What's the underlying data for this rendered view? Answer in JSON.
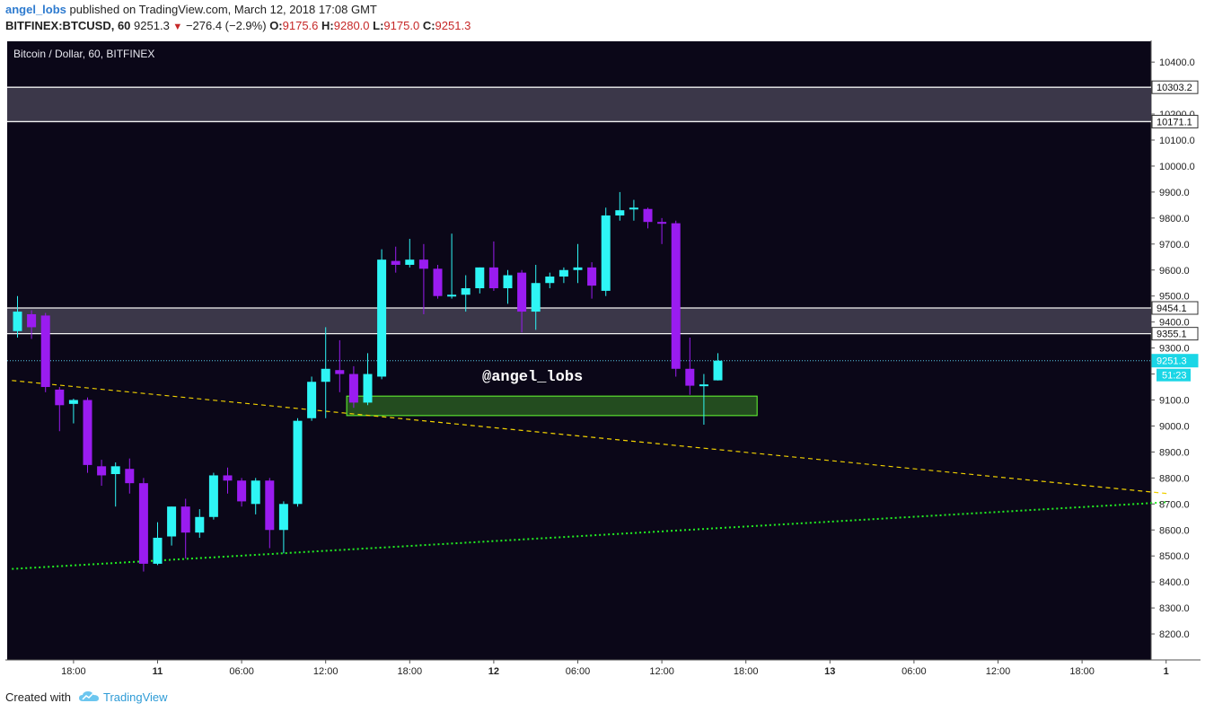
{
  "header": {
    "author": "angel_lobs",
    "published": "published on TradingView.com, March 12, 2018 17:08 GMT",
    "symbol": "BITFINEX:BTCUSD, 60",
    "last": "9251.3",
    "change": "−276.4 (−2.9%)",
    "o_label": "O:",
    "o_value": "9175.6",
    "h_label": "H:",
    "h_value": "9280.0",
    "l_label": "L:",
    "l_value": "9175.0",
    "c_label": "C:",
    "c_value": "9251.3"
  },
  "footer": {
    "created_with": "Created with",
    "brand": "TradingView"
  },
  "chart_data": {
    "type": "candlestick",
    "title": "Bitcoin / Dollar, 60, BITFINEX",
    "colors": {
      "background": "#0b0718",
      "up": "#2ef5f5",
      "down": "#9a1cf0",
      "zone": "#3e3a4c",
      "support": "#66ff33",
      "trend_dashed": "#f0d000",
      "trend_dotted": "#22ee22",
      "last_price_line": "#59c8e8"
    },
    "ylim": [
      8100,
      10480
    ],
    "yticks": [
      8200,
      8300,
      8400,
      8500,
      8600,
      8700,
      8800,
      8900,
      9000,
      9100,
      9200,
      9300,
      9400,
      9500,
      9600,
      9700,
      9800,
      9900,
      10000,
      10100,
      10200,
      10300,
      10400
    ],
    "xticks": [
      {
        "label": "18:00",
        "bar": 4
      },
      {
        "label": "11",
        "bar": 10
      },
      {
        "label": "06:00",
        "bar": 16
      },
      {
        "label": "12:00",
        "bar": 22
      },
      {
        "label": "18:00",
        "bar": 28
      },
      {
        "label": "12",
        "bar": 34
      },
      {
        "label": "06:00",
        "bar": 40
      },
      {
        "label": "12:00",
        "bar": 46
      },
      {
        "label": "18:00",
        "bar": 52
      },
      {
        "label": "13",
        "bar": 58
      },
      {
        "label": "06:00",
        "bar": 64
      },
      {
        "label": "12:00",
        "bar": 70
      },
      {
        "label": "18:00",
        "bar": 76
      },
      {
        "label": "1",
        "bar": 82
      }
    ],
    "candles": [
      {
        "o": 9365,
        "h": 9500,
        "l": 9340,
        "c": 9440
      },
      {
        "o": 9430,
        "h": 9445,
        "l": 9335,
        "c": 9380
      },
      {
        "o": 9425,
        "h": 9435,
        "l": 9130,
        "c": 9150
      },
      {
        "o": 9140,
        "h": 9150,
        "l": 8980,
        "c": 9080
      },
      {
        "o": 9085,
        "h": 9105,
        "l": 9010,
        "c": 9100
      },
      {
        "o": 9100,
        "h": 9110,
        "l": 8820,
        "c": 8850
      },
      {
        "o": 8845,
        "h": 8870,
        "l": 8770,
        "c": 8810
      },
      {
        "o": 8815,
        "h": 8860,
        "l": 8690,
        "c": 8845
      },
      {
        "o": 8835,
        "h": 8875,
        "l": 8740,
        "c": 8780
      },
      {
        "o": 8780,
        "h": 8800,
        "l": 8440,
        "c": 8470
      },
      {
        "o": 8470,
        "h": 8630,
        "l": 8465,
        "c": 8570
      },
      {
        "o": 8575,
        "h": 8690,
        "l": 8540,
        "c": 8690
      },
      {
        "o": 8690,
        "h": 8720,
        "l": 8490,
        "c": 8590
      },
      {
        "o": 8590,
        "h": 8680,
        "l": 8570,
        "c": 8650
      },
      {
        "o": 8650,
        "h": 8820,
        "l": 8640,
        "c": 8810
      },
      {
        "o": 8810,
        "h": 8840,
        "l": 8740,
        "c": 8790
      },
      {
        "o": 8790,
        "h": 8800,
        "l": 8690,
        "c": 8710
      },
      {
        "o": 8700,
        "h": 8800,
        "l": 8660,
        "c": 8790
      },
      {
        "o": 8790,
        "h": 8800,
        "l": 8530,
        "c": 8600
      },
      {
        "o": 8600,
        "h": 8710,
        "l": 8510,
        "c": 8700
      },
      {
        "o": 8700,
        "h": 9030,
        "l": 8690,
        "c": 9020
      },
      {
        "o": 9030,
        "h": 9190,
        "l": 9020,
        "c": 9170
      },
      {
        "o": 9170,
        "h": 9380,
        "l": 9030,
        "c": 9220
      },
      {
        "o": 9215,
        "h": 9330,
        "l": 9130,
        "c": 9200
      },
      {
        "o": 9200,
        "h": 9230,
        "l": 9070,
        "c": 9090
      },
      {
        "o": 9090,
        "h": 9280,
        "l": 9080,
        "c": 9200
      },
      {
        "o": 9190,
        "h": 9680,
        "l": 9180,
        "c": 9640
      },
      {
        "o": 9635,
        "h": 9690,
        "l": 9590,
        "c": 9620
      },
      {
        "o": 9620,
        "h": 9720,
        "l": 9610,
        "c": 9640
      },
      {
        "o": 9640,
        "h": 9700,
        "l": 9430,
        "c": 9605
      },
      {
        "o": 9605,
        "h": 9620,
        "l": 9490,
        "c": 9500
      },
      {
        "o": 9500,
        "h": 9740,
        "l": 9490,
        "c": 9505
      },
      {
        "o": 9505,
        "h": 9580,
        "l": 9440,
        "c": 9530
      },
      {
        "o": 9530,
        "h": 9610,
        "l": 9510,
        "c": 9610
      },
      {
        "o": 9610,
        "h": 9710,
        "l": 9520,
        "c": 9530
      },
      {
        "o": 9530,
        "h": 9600,
        "l": 9470,
        "c": 9580
      },
      {
        "o": 9590,
        "h": 9600,
        "l": 9360,
        "c": 9440
      },
      {
        "o": 9440,
        "h": 9620,
        "l": 9370,
        "c": 9550
      },
      {
        "o": 9550,
        "h": 9590,
        "l": 9530,
        "c": 9575
      },
      {
        "o": 9575,
        "h": 9610,
        "l": 9550,
        "c": 9600
      },
      {
        "o": 9600,
        "h": 9700,
        "l": 9550,
        "c": 9610
      },
      {
        "o": 9610,
        "h": 9630,
        "l": 9490,
        "c": 9540
      },
      {
        "o": 9520,
        "h": 9840,
        "l": 9500,
        "c": 9810
      },
      {
        "o": 9810,
        "h": 9900,
        "l": 9790,
        "c": 9830
      },
      {
        "o": 9840,
        "h": 9870,
        "l": 9790,
        "c": 9840
      },
      {
        "o": 9835,
        "h": 9840,
        "l": 9760,
        "c": 9785
      },
      {
        "o": 9785,
        "h": 9800,
        "l": 9700,
        "c": 9780
      },
      {
        "o": 9780,
        "h": 9790,
        "l": 9190,
        "c": 9220
      },
      {
        "o": 9220,
        "h": 9340,
        "l": 9120,
        "c": 9155
      },
      {
        "o": 9155,
        "h": 9200,
        "l": 9005,
        "c": 9160
      },
      {
        "o": 9175.6,
        "h": 9280,
        "l": 9175,
        "c": 9251.3
      }
    ],
    "zones": [
      {
        "from": 10171.1,
        "to": 10303.2
      },
      {
        "from": 9355.1,
        "to": 9454.1
      }
    ],
    "support_box": {
      "from": 9040,
      "to": 9115,
      "start_bar": 23.5,
      "end_bar": 52.8
    },
    "trendlines": [
      {
        "style": "dashed",
        "from": {
          "bar": -0.4,
          "price": 9175
        },
        "to": {
          "bar": 82.1,
          "price": 8740
        }
      },
      {
        "style": "dotted",
        "from": {
          "bar": -0.4,
          "price": 8450
        },
        "to": {
          "bar": 82.1,
          "price": 8707
        }
      }
    ],
    "annotation": "@angel_lobs",
    "price_labels": [
      {
        "value": "10303.2",
        "price": 10303.2,
        "kind": "zone"
      },
      {
        "value": "10171.1",
        "price": 10171.1,
        "kind": "zone"
      },
      {
        "value": "9454.1",
        "price": 9454.1,
        "kind": "zone"
      },
      {
        "value": "9355.1",
        "price": 9355.1,
        "kind": "zone"
      },
      {
        "value": "9251.3",
        "price": 9251.3,
        "kind": "last"
      }
    ],
    "countdown": "51:23"
  }
}
